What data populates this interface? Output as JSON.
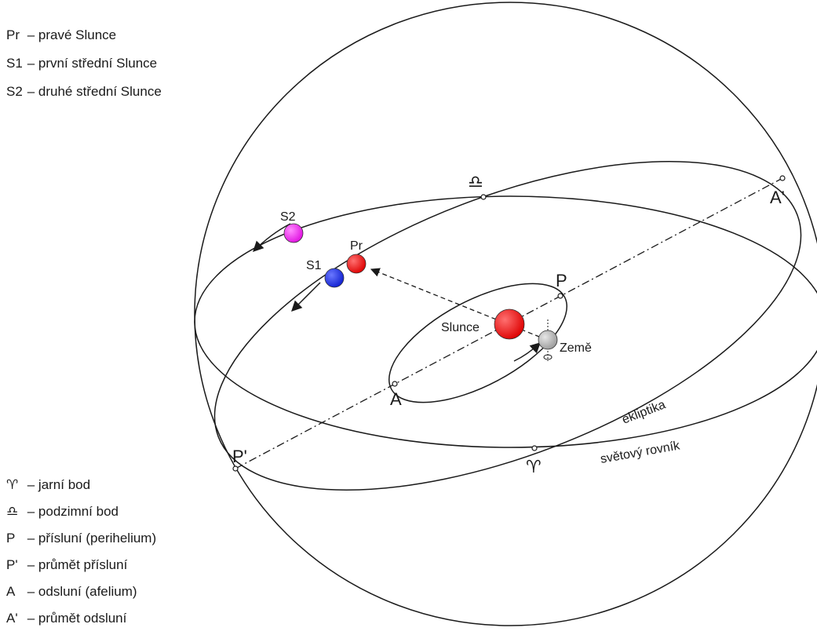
{
  "legend_top": [
    {
      "symbol": "Pr",
      "desc": "– pravé Slunce"
    },
    {
      "symbol": "S1",
      "desc": "– první střední Slunce"
    },
    {
      "symbol": "S2",
      "desc": "– druhé střední Slunce"
    }
  ],
  "legend_bottom": [
    {
      "symbol": "♈",
      "desc": "– jarní bod"
    },
    {
      "symbol": "♎",
      "desc": "– podzimní bod"
    },
    {
      "symbol": "P",
      "desc": "– přísluní (perihelium)"
    },
    {
      "symbol": "P'",
      "desc": "– průmět přísluní"
    },
    {
      "symbol": "A",
      "desc": "– odsluní (afelium)"
    },
    {
      "symbol": "A'",
      "desc": "– průmět odsluní"
    }
  ],
  "labels": {
    "s2": "S2",
    "s1": "S1",
    "pr": "Pr",
    "slunce": "Slunce",
    "zeme": "Země",
    "p": "P",
    "a": "A",
    "p_prime": "P'",
    "a_prime": "A'",
    "libra": "♎",
    "aries": "♈",
    "ekliptika": "ekliptika",
    "rovnik": "světový rovník"
  },
  "colors": {
    "line": "#1a1a1a",
    "sun_red": "#ee1111",
    "s1_blue": "#1a2ae0",
    "s2_magenta": "#ee22ee",
    "earth_gray": "#b8b8b8"
  }
}
